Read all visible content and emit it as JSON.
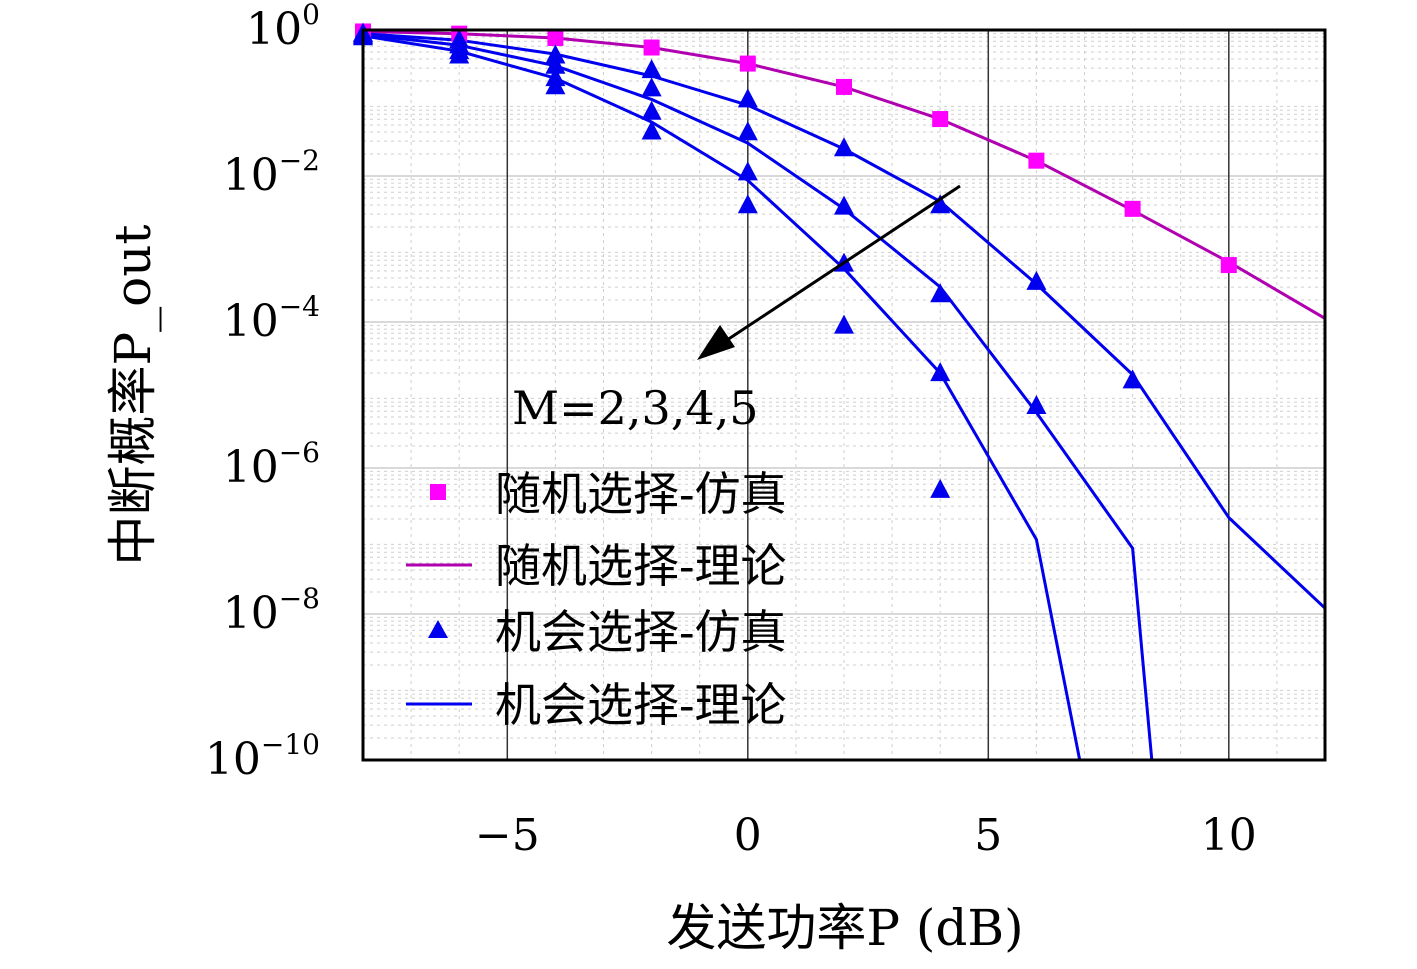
{
  "chart_data": {
    "type": "line",
    "xlabel": "发送功率P (dB)",
    "ylabel": "中断概率P_out",
    "xlim": [
      -8,
      12
    ],
    "ylim_log10": [
      -10,
      0
    ],
    "y_scale": "log",
    "grid": true,
    "x_ticks": [
      {
        "value": -5,
        "label": "−5"
      },
      {
        "value": 0,
        "label": "0"
      },
      {
        "value": 5,
        "label": "5"
      },
      {
        "value": 10,
        "label": "10"
      }
    ],
    "y_ticks": [
      {
        "exp": 0,
        "base": "10",
        "sup": "0"
      },
      {
        "exp": -2,
        "base": "10",
        "sup": "−2"
      },
      {
        "exp": -4,
        "base": "10",
        "sup": "−4"
      },
      {
        "exp": -6,
        "base": "10",
        "sup": "−6"
      },
      {
        "exp": -8,
        "base": "10",
        "sup": "−8"
      },
      {
        "exp": -10,
        "base": "10",
        "sup": "−10"
      }
    ],
    "annotation": "M=2,3,4,5",
    "legend": [
      {
        "label": "随机选择-仿真",
        "marker": "square",
        "color": "#FF00FF"
      },
      {
        "label": "随机选择-理论",
        "marker": "line",
        "color": "#B000B0"
      },
      {
        "label": "机会选择-仿真",
        "marker": "triangle",
        "color": "#0000EE"
      },
      {
        "label": "机会选择-理论",
        "marker": "line",
        "color": "#0000EE"
      }
    ],
    "series": [
      {
        "name": "随机选择-理论",
        "kind": "line",
        "color": "#B000B0",
        "x": [
          -8,
          -6,
          -4,
          -2,
          0,
          2,
          4,
          6,
          8,
          10,
          12
        ],
        "y_log10": [
          -0.02,
          -0.05,
          -0.11,
          -0.24,
          -0.46,
          -0.78,
          -1.22,
          -1.79,
          -2.47,
          -3.18,
          -3.95
        ]
      },
      {
        "name": "随机选择-仿真",
        "kind": "scatter",
        "marker": "square",
        "color": "#FF00FF",
        "x": [
          -8,
          -6,
          -4,
          -2,
          0,
          2,
          4,
          6,
          8,
          10
        ],
        "y_log10": [
          -0.02,
          -0.05,
          -0.11,
          -0.24,
          -0.46,
          -0.78,
          -1.22,
          -1.79,
          -2.45,
          -3.22
        ]
      },
      {
        "name": "机会选择-理论 M=2",
        "kind": "line",
        "color": "#0000EE",
        "x": [
          -8,
          -6,
          -4,
          -2,
          0,
          2,
          4,
          6,
          8,
          10,
          12
        ],
        "y_log10": [
          -0.05,
          -0.14,
          -0.33,
          -0.63,
          -1.03,
          -1.63,
          -2.35,
          -3.48,
          -4.72,
          -6.68,
          -7.92
        ]
      },
      {
        "name": "机会选择-理论 M=3",
        "kind": "line",
        "color": "#0000EE",
        "x": [
          -8,
          -6,
          -4,
          -2,
          0,
          2,
          4,
          6,
          8,
          8.4
        ],
        "y_log10": [
          -0.06,
          -0.21,
          -0.49,
          -0.95,
          -1.55,
          -2.45,
          -3.52,
          -5.24,
          -7.1,
          -10
        ]
      },
      {
        "name": "机会选择-理论 M=4",
        "kind": "line",
        "color": "#0000EE",
        "x": [
          -8,
          -6,
          -4,
          -2,
          0,
          2,
          4,
          6,
          6.9
        ],
        "y_log10": [
          -0.08,
          -0.29,
          -0.66,
          -1.26,
          -2.06,
          -3.27,
          -4.7,
          -6.98,
          -10
        ]
      },
      {
        "name": "机会选择-仿真 M=2",
        "kind": "scatter",
        "marker": "triangle",
        "color": "#0000EE",
        "x": [
          -8,
          -6,
          -4,
          -2,
          0,
          2,
          4,
          6,
          8
        ],
        "y_log10": [
          -0.05,
          -0.14,
          -0.35,
          -0.55,
          -0.95,
          -1.62,
          -2.4,
          -3.45,
          -4.8
        ]
      },
      {
        "name": "机会选择-仿真 M=3",
        "kind": "scatter",
        "marker": "triangle",
        "color": "#0000EE",
        "x": [
          -8,
          -6,
          -4,
          -2,
          0,
          2,
          4,
          6
        ],
        "y_log10": [
          -0.06,
          -0.21,
          -0.49,
          -0.8,
          -1.4,
          -2.42,
          -3.62,
          -5.15
        ]
      },
      {
        "name": "机会选择-仿真 M=4",
        "kind": "scatter",
        "marker": "triangle",
        "color": "#0000EE",
        "x": [
          -8,
          -6,
          -4,
          -2,
          0,
          2,
          4
        ],
        "y_log10": [
          -0.08,
          -0.29,
          -0.66,
          -1.12,
          -1.95,
          -3.2,
          -4.7
        ]
      },
      {
        "name": "机会选择-仿真 M=5",
        "kind": "scatter",
        "marker": "triangle",
        "color": "#0000EE",
        "x": [
          -8,
          -6,
          -4,
          -2,
          0,
          2,
          4
        ],
        "y_log10": [
          -0.1,
          -0.35,
          -0.77,
          -1.39,
          -2.4,
          -4.05,
          -6.3
        ]
      }
    ]
  }
}
